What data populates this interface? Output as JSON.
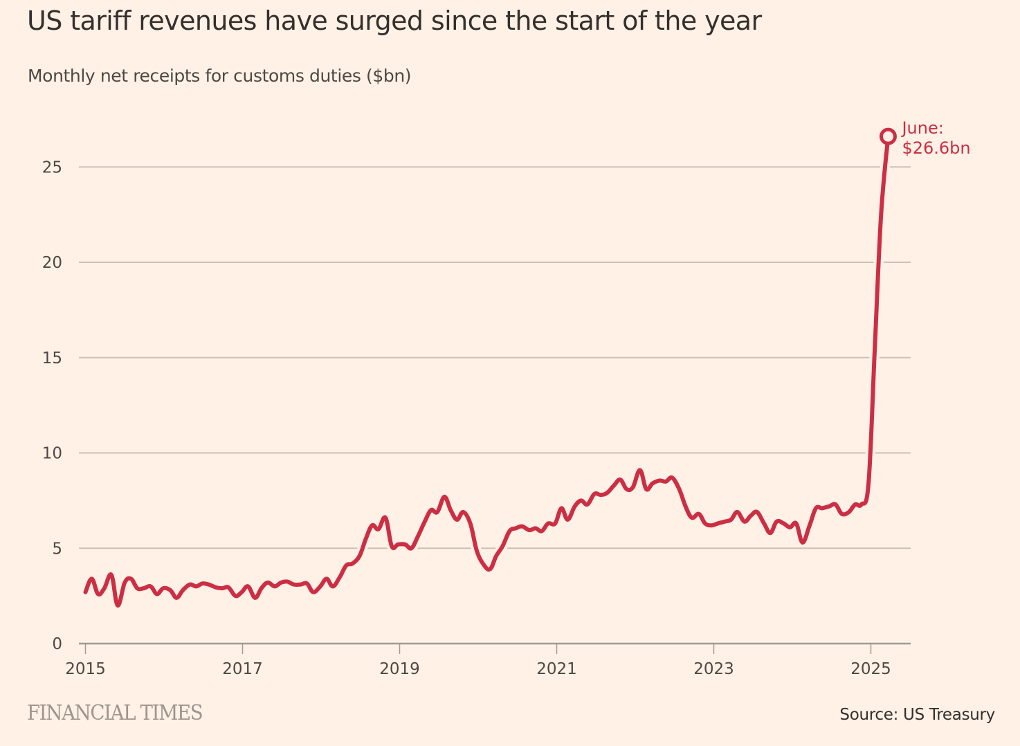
{
  "header": {
    "title": "US tariff revenues have surged since the start of the year",
    "subtitle": "Monthly net receipts for customs duties ($bn)"
  },
  "footer": {
    "brand": "FINANCIAL TIMES",
    "source": "Source: US Treasury"
  },
  "colors": {
    "background": "#fff1e5",
    "line": "#cc2e44",
    "grid": "#ccc1b7",
    "axis": "#a09a94",
    "text": "#33302e"
  },
  "chart_data": {
    "type": "line",
    "title": "US tariff revenues have surged since the start of the year",
    "subtitle": "Monthly net receipts for customs duties ($bn)",
    "xlabel": "",
    "ylabel": "$bn",
    "xlim": [
      2014.92,
      2025.52
    ],
    "ylim": [
      0,
      27.5
    ],
    "yticks": [
      0,
      5,
      10,
      15,
      20,
      25
    ],
    "xticks": [
      2015,
      2017,
      2019,
      2021,
      2023,
      2025
    ],
    "grid": true,
    "legend": "none",
    "annotation": {
      "line1": "June:",
      "line2": "$26.6bn",
      "value": 26.6
    },
    "series": [
      {
        "name": "Monthly net receipts for customs duties",
        "x": [
          2015.0,
          2015.08,
          2015.16,
          2015.24,
          2015.33,
          2015.41,
          2015.5,
          2015.58,
          2015.66,
          2015.74,
          2015.83,
          2015.91,
          2015.99,
          2016.08,
          2016.16,
          2016.24,
          2016.33,
          2016.41,
          2016.49,
          2016.57,
          2016.66,
          2016.74,
          2016.82,
          2016.91,
          2016.99,
          2017.07,
          2017.16,
          2017.24,
          2017.32,
          2017.41,
          2017.49,
          2017.57,
          2017.65,
          2017.74,
          2017.82,
          2017.9,
          2017.99,
          2018.07,
          2018.15,
          2018.24,
          2018.32,
          2018.4,
          2018.49,
          2018.57,
          2018.65,
          2018.73,
          2018.82,
          2018.9,
          2018.98,
          2019.07,
          2019.15,
          2019.23,
          2019.32,
          2019.4,
          2019.48,
          2019.57,
          2019.65,
          2019.73,
          2019.81,
          2019.9,
          2019.98,
          2020.06,
          2020.15,
          2020.23,
          2020.31,
          2020.4,
          2020.48,
          2020.56,
          2020.65,
          2020.73,
          2020.81,
          2020.89,
          2020.98,
          2021.06,
          2021.14,
          2021.23,
          2021.31,
          2021.39,
          2021.48,
          2021.56,
          2021.64,
          2021.73,
          2021.81,
          2021.89,
          2021.97,
          2022.06,
          2022.14,
          2022.22,
          2022.31,
          2022.39,
          2022.47,
          2022.56,
          2022.64,
          2022.72,
          2022.81,
          2022.89,
          2022.97,
          2023.05,
          2023.14,
          2023.22,
          2023.3,
          2023.39,
          2023.47,
          2023.55,
          2023.64,
          2023.72,
          2023.8,
          2023.89,
          2023.97,
          2024.05,
          2024.13,
          2024.22,
          2024.3,
          2024.38,
          2024.47,
          2024.55,
          2024.63,
          2024.72,
          2024.8,
          2024.88,
          2024.97,
          2025.05,
          2025.13,
          2025.22
        ],
        "values": [
          2.7,
          3.4,
          2.6,
          2.9,
          3.6,
          2.0,
          3.2,
          3.4,
          2.9,
          2.9,
          3.0,
          2.6,
          2.9,
          2.8,
          2.4,
          2.8,
          3.1,
          3.0,
          3.15,
          3.1,
          2.95,
          2.9,
          2.95,
          2.5,
          2.7,
          3.0,
          2.4,
          2.9,
          3.2,
          3.0,
          3.2,
          3.25,
          3.1,
          3.1,
          3.15,
          2.7,
          3.0,
          3.4,
          3.0,
          3.5,
          4.1,
          4.2,
          4.6,
          5.5,
          6.2,
          6.0,
          6.6,
          5.1,
          5.2,
          5.2,
          5.0,
          5.6,
          6.4,
          7.0,
          6.9,
          7.7,
          7.0,
          6.5,
          6.9,
          6.3,
          4.9,
          4.2,
          3.9,
          4.6,
          5.1,
          5.9,
          6.05,
          6.15,
          5.95,
          6.05,
          5.9,
          6.3,
          6.3,
          7.1,
          6.5,
          7.2,
          7.5,
          7.3,
          7.85,
          7.8,
          7.9,
          8.3,
          8.6,
          8.1,
          8.2,
          9.1,
          8.1,
          8.4,
          8.55,
          8.5,
          8.7,
          8.1,
          7.2,
          6.6,
          6.8,
          6.3,
          6.2,
          6.3,
          6.4,
          6.5,
          6.9,
          6.4,
          6.7,
          6.9,
          6.3,
          5.8,
          6.4,
          6.3,
          6.1,
          6.3,
          5.3,
          6.2,
          7.1,
          7.1,
          7.2,
          7.3,
          6.8,
          6.9,
          7.3,
          7.3,
          8.4,
          15.5,
          22.5,
          26.6
        ]
      }
    ]
  }
}
